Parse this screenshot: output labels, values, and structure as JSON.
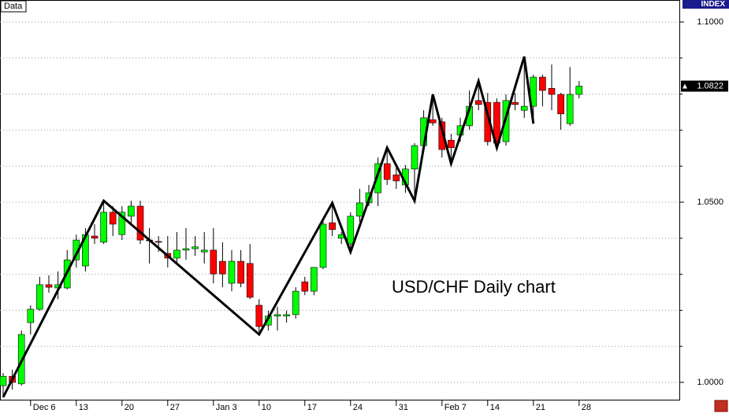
{
  "chart_data": {
    "type": "candlestick",
    "title": "USD/CHF Daily chart",
    "panel_label": "Data",
    "axis_label": "INDEX",
    "categories": [
      null,
      null,
      null,
      "Dec 6",
      null,
      null,
      null,
      null,
      "13",
      null,
      null,
      null,
      null,
      "20",
      null,
      null,
      null,
      null,
      "27",
      null,
      null,
      null,
      null,
      "Jan 3",
      null,
      null,
      null,
      null,
      "10",
      null,
      null,
      null,
      null,
      "17",
      null,
      null,
      null,
      null,
      "24",
      null,
      null,
      null,
      null,
      "31",
      null,
      null,
      null,
      null,
      "Feb 7",
      null,
      null,
      null,
      null,
      "14",
      null,
      null,
      null,
      null,
      "21",
      null,
      null,
      null,
      null,
      "28"
    ],
    "open": [
      0.9991,
      1.0017,
      0.9996,
      1.0166,
      1.0203,
      1.0271,
      1.0262,
      1.0262,
      1.034,
      1.0323,
      1.0406,
      1.0389,
      1.0472,
      1.041,
      1.0461,
      1.0489,
      1.0395,
      1.0391,
      1.0358,
      1.0345,
      1.0367,
      1.0371,
      1.0362,
      1.0367,
      1.0336,
      1.0275,
      1.0336,
      1.033,
      1.0214,
      1.0159,
      1.0184,
      1.0184,
      1.0188,
      1.0279,
      1.0253,
      1.0319,
      1.0443,
      1.04,
      1.0384,
      1.0461,
      1.0498,
      1.0526,
      1.0607,
      1.0576,
      1.0548,
      1.0592,
      1.0657,
      1.0729,
      1.0723,
      1.0672,
      1.0686,
      1.0712,
      1.0782,
      1.0777,
      1.0777,
      1.0668,
      1.0777,
      1.0755,
      1.0766,
      1.0847,
      1.0816,
      1.0799,
      1.0718,
      1.0799
    ],
    "close": [
      1.0017,
      1.0,
      1.0133,
      1.0203,
      1.0271,
      1.0264,
      1.0271,
      1.034,
      1.0395,
      1.041,
      1.04,
      1.0472,
      1.0439,
      1.0472,
      1.0489,
      1.0395,
      1.0393,
      1.0389,
      1.0345,
      1.0367,
      1.0371,
      1.0376,
      1.0367,
      1.0301,
      1.0301,
      1.0336,
      1.0275,
      1.0236,
      1.0155,
      1.0184,
      1.0188,
      1.0188,
      1.0253,
      1.0253,
      1.0319,
      1.0439,
      1.0424,
      1.041,
      1.0461,
      1.0498,
      1.0526,
      1.0607,
      1.0563,
      1.0559,
      1.0592,
      1.0657,
      1.0734,
      1.072,
      1.0646,
      1.0651,
      1.0712,
      1.0766,
      1.0771,
      1.0668,
      1.0664,
      1.0782,
      1.0771,
      1.0766,
      1.0847,
      1.081,
      1.0799,
      1.0745,
      1.0799,
      1.0822
    ],
    "high": [
      1.0026,
      1.0035,
      1.0144,
      1.0214,
      1.0293,
      1.0297,
      1.0308,
      1.0367,
      1.041,
      1.0428,
      1.0439,
      1.0504,
      1.0489,
      1.0489,
      1.0504,
      1.0504,
      1.0428,
      1.0406,
      1.0406,
      1.0417,
      1.0428,
      1.0406,
      1.0417,
      1.0428,
      1.0389,
      1.0367,
      1.0367,
      1.0384,
      1.0231,
      1.0199,
      1.021,
      1.0199,
      1.0264,
      1.0293,
      1.0319,
      1.045,
      1.0498,
      1.0417,
      1.0472,
      1.0537,
      1.0548,
      1.0624,
      1.0651,
      1.0603,
      1.0603,
      1.0664,
      1.0755,
      1.0799,
      1.0734,
      1.069,
      1.0734,
      1.081,
      1.0836,
      1.0803,
      1.0788,
      1.0799,
      1.0803,
      1.0904,
      1.0854,
      1.0854,
      1.0882,
      1.0803,
      1.0875,
      1.0836
    ],
    "low": [
      0.9959,
      0.998,
      0.9991,
      1.0133,
      1.0199,
      1.0249,
      1.0231,
      1.0258,
      1.0319,
      1.0308,
      1.0384,
      1.0384,
      1.0406,
      1.0395,
      1.0439,
      1.0384,
      1.033,
      1.0362,
      1.0319,
      1.033,
      1.034,
      1.0351,
      1.033,
      1.0275,
      1.0264,
      1.0253,
      1.0264,
      1.0231,
      1.0133,
      1.0144,
      1.0144,
      1.0166,
      1.0177,
      1.0242,
      1.0242,
      1.0314,
      1.0406,
      1.0384,
      1.0362,
      1.0445,
      1.0489,
      1.0489,
      1.0548,
      1.0537,
      1.0526,
      1.0504,
      1.0646,
      1.0712,
      1.0624,
      1.0607,
      1.0668,
      1.0701,
      1.0755,
      1.0657,
      1.0651,
      1.0657,
      1.0755,
      1.0734,
      1.0718,
      1.0766,
      1.0755,
      1.0701,
      1.0712,
      1.0788
    ],
    "up_color": "#00ff00",
    "down_color": "#ff0000",
    "zigzag": {
      "x": [
        0,
        11,
        28,
        36,
        38,
        42,
        45,
        47,
        49,
        52,
        54,
        57,
        58
      ],
      "values": [
        0.9959,
        1.0504,
        1.0133,
        1.0498,
        1.0362,
        1.0651,
        1.0504,
        1.0799,
        1.0607,
        1.0836,
        1.0651,
        1.0904,
        1.0718
      ],
      "color": "#000000"
    },
    "ylim": [
      0.9952,
      1.1061
    ],
    "yticks": [
      {
        "value": 1.0,
        "label": "1.0000"
      },
      {
        "value": 1.05,
        "label": "1.0500"
      },
      {
        "value": 1.1,
        "label": "1.1000"
      }
    ],
    "yminor": [
      1.01,
      1.02,
      1.03,
      1.04,
      1.06,
      1.07,
      1.08,
      1.09
    ],
    "last_price": {
      "value": 1.0822,
      "label": "1.0822"
    },
    "grid": true
  }
}
